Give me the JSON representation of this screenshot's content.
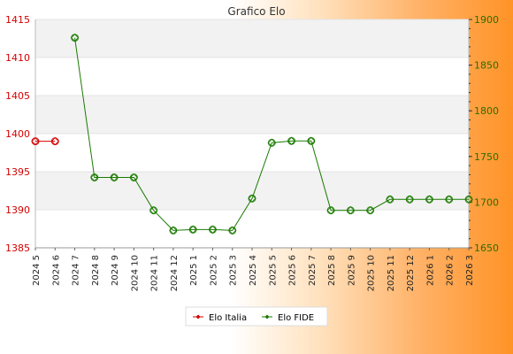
{
  "chart_data": {
    "type": "line",
    "title": "Grafico Elo",
    "categories": [
      "2024 5",
      "2024 6",
      "2024 7",
      "2024 8",
      "2024 9",
      "2024 10",
      "2024 11",
      "2024 12",
      "2025 1",
      "2025 2",
      "2025 3",
      "2025 4",
      "2025 5",
      "2025 6",
      "2025 7",
      "2025 8",
      "2025 9",
      "2025 10",
      "2025 11",
      "2025 12",
      "2026 1",
      "2026 2",
      "2026 3"
    ],
    "left_axis": {
      "ylim": [
        1385,
        1415
      ],
      "ticks": [
        1385,
        1390,
        1395,
        1400,
        1405,
        1410,
        1415
      ]
    },
    "right_axis": {
      "ylim": [
        1650,
        1900
      ],
      "ticks": [
        1650,
        1700,
        1750,
        1800,
        1850,
        1900
      ]
    },
    "series": [
      {
        "name": "Elo Italia",
        "axis": "left",
        "color": "#d40000",
        "values": [
          1399,
          1399,
          null,
          null,
          null,
          null,
          null,
          null,
          null,
          null,
          null,
          null,
          null,
          null,
          null,
          null,
          null,
          null,
          null,
          null,
          null,
          null,
          null
        ]
      },
      {
        "name": "Elo FIDE",
        "axis": "right",
        "color": "#1a7a00",
        "values": [
          null,
          null,
          1880,
          1727,
          1727,
          1727,
          1691,
          1669,
          1670,
          1670,
          1669,
          1704,
          1765,
          1767,
          1767,
          1691,
          1691,
          1691,
          1703,
          1703,
          1703,
          1703,
          1703
        ]
      }
    ],
    "grid": "horizontal-bands",
    "legend": "bottom-center",
    "colors": {
      "band": "#f2f2f2",
      "left_axis": "#d40000",
      "right_axis": "#2f6b00",
      "background_gradient_end": "#ff9326"
    }
  }
}
